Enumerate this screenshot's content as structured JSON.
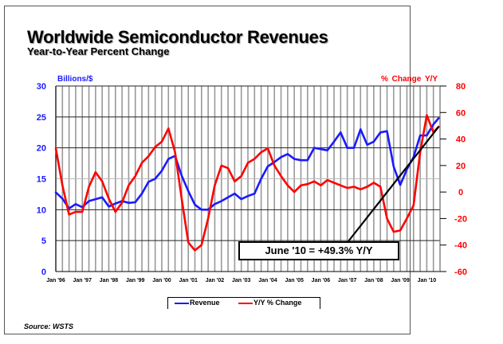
{
  "chart_data": {
    "type": "line",
    "title": "Worldwide Semiconductor Revenues",
    "subtitle": "Year-to-Year Percent Change",
    "ylabel_left": "Billions/$",
    "ylabel_right": "% Change Y/Y",
    "ylim_left": [
      0,
      30
    ],
    "ylim_right": [
      -60,
      80
    ],
    "yticks_left": [
      "0",
      "5",
      "10",
      "15",
      "20",
      "25",
      "30"
    ],
    "yticks_right": [
      "-60",
      "-40",
      "-20",
      "0",
      "20",
      "40",
      "60",
      "80"
    ],
    "xticks": [
      "Jan '96",
      "Jan '97",
      "Jan '98",
      "Jan '99",
      "Jan '00",
      "Jan '01",
      "Jan '02",
      "Jan '03",
      "Jan '04",
      "Jan '05",
      "Jan '06",
      "Jan '07",
      "Jan '08",
      "Jan '09",
      "Jan '10"
    ],
    "x_range": [
      1996.0,
      2010.5
    ],
    "grid": true,
    "legend_position": "bottom",
    "series": [
      {
        "name": "Revenue",
        "axis": "left",
        "color": "#1a1aff",
        "x": [
          1996.0,
          1996.25,
          1996.5,
          1996.75,
          1997.0,
          1997.25,
          1997.5,
          1997.75,
          1998.0,
          1998.25,
          1998.5,
          1998.75,
          1999.0,
          1999.25,
          1999.5,
          1999.75,
          2000.0,
          2000.25,
          2000.5,
          2000.75,
          2001.0,
          2001.25,
          2001.5,
          2001.75,
          2002.0,
          2002.25,
          2002.5,
          2002.75,
          2003.0,
          2003.25,
          2003.5,
          2003.75,
          2004.0,
          2004.25,
          2004.5,
          2004.75,
          2005.0,
          2005.25,
          2005.5,
          2005.75,
          2006.0,
          2006.25,
          2006.5,
          2006.75,
          2007.0,
          2007.25,
          2007.5,
          2007.75,
          2008.0,
          2008.25,
          2008.5,
          2008.75,
          2009.0,
          2009.25,
          2009.5,
          2009.75,
          2010.0,
          2010.25,
          2010.45
        ],
        "values": [
          12.8,
          11.8,
          10.2,
          10.9,
          10.4,
          11.4,
          11.7,
          12.0,
          10.5,
          11.0,
          11.4,
          11.1,
          11.2,
          12.6,
          14.5,
          15.0,
          16.3,
          18.2,
          18.7,
          15.5,
          13.0,
          10.8,
          10.0,
          10.0,
          10.9,
          11.4,
          12.0,
          12.6,
          11.7,
          12.2,
          12.6,
          15.0,
          17.0,
          17.7,
          18.5,
          19.0,
          18.2,
          18.0,
          18.0,
          20.0,
          19.8,
          19.6,
          21.0,
          22.5,
          20.0,
          20.0,
          23.0,
          20.5,
          21.0,
          22.5,
          22.7,
          17.0,
          14.0,
          16.5,
          18.5,
          22.0,
          22.0,
          23.8,
          24.8
        ]
      },
      {
        "name": "Y/Y % Change",
        "axis": "right",
        "color": "#ff0000",
        "x": [
          1996.0,
          1996.25,
          1996.5,
          1996.75,
          1997.0,
          1997.25,
          1997.5,
          1997.75,
          1998.0,
          1998.25,
          1998.5,
          1998.75,
          1999.0,
          1999.25,
          1999.5,
          1999.75,
          2000.0,
          2000.25,
          2000.5,
          2000.75,
          2001.0,
          2001.25,
          2001.5,
          2001.75,
          2002.0,
          2002.25,
          2002.5,
          2002.75,
          2003.0,
          2003.25,
          2003.5,
          2003.75,
          2004.0,
          2004.25,
          2004.5,
          2004.75,
          2005.0,
          2005.25,
          2005.5,
          2005.75,
          2006.0,
          2006.25,
          2006.5,
          2006.75,
          2007.0,
          2007.25,
          2007.5,
          2007.75,
          2008.0,
          2008.25,
          2008.5,
          2008.75,
          2009.0,
          2009.25,
          2009.5,
          2009.75,
          2010.0,
          2010.25,
          2010.45
        ],
        "values": [
          33,
          5,
          -17,
          -15,
          -15,
          4,
          15,
          8,
          -5,
          -15,
          -8,
          5,
          12,
          22,
          27,
          34,
          38,
          48,
          30,
          -5,
          -38,
          -44,
          -40,
          -20,
          5,
          20,
          18,
          8,
          12,
          22,
          25,
          30,
          33,
          20,
          12,
          5,
          0,
          5,
          6,
          8,
          5,
          9,
          7,
          5,
          3,
          4,
          2,
          4,
          7,
          4,
          -20,
          -30,
          -29,
          -20,
          -10,
          30,
          58,
          45,
          49.3
        ]
      }
    ],
    "annotations": [
      {
        "text": "June '10 = +49.3% Y/Y",
        "points_to": {
          "x": 2010.45,
          "y": 49.3,
          "axis": "right"
        }
      }
    ],
    "source": "Source: WSTS"
  },
  "legend": {
    "revenue_label": "Revenue",
    "yoy_label": "Y/Y % Change"
  }
}
